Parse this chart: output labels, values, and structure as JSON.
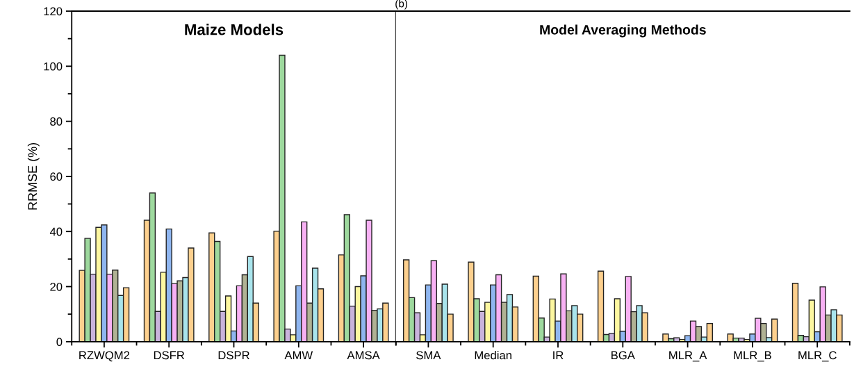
{
  "chart_data": [
    {
      "type": "bar",
      "title": "Maize Models",
      "ylabel": "RRMSE (%)",
      "annotations": [
        "(b)"
      ],
      "categories": [
        "RZWQM2",
        "DSFR",
        "DSPR",
        "AMW",
        "AMSA"
      ],
      "ylim": [
        0,
        120
      ],
      "yticks": [
        0,
        20,
        40,
        60,
        80,
        100,
        120
      ],
      "grid": false,
      "legend": false,
      "series": [
        {
          "color": "#fdd08e",
          "values": [
            25.9,
            44.1,
            39.5,
            40.1,
            31.5
          ]
        },
        {
          "color": "#9ed99e",
          "values": [
            37.5,
            54,
            36.4,
            104,
            46.1
          ]
        },
        {
          "color": "#c9b3dc",
          "values": [
            24.5,
            11,
            11,
            4.6,
            12.9
          ]
        },
        {
          "color": "#fdf7a0",
          "values": [
            41.5,
            25.2,
            16.6,
            2.5,
            20
          ]
        },
        {
          "color": "#8fb6f0",
          "values": [
            42.4,
            40.9,
            3.9,
            20.3,
            23.9
          ]
        },
        {
          "color": "#f8b1f4",
          "values": [
            24.5,
            21.1,
            20.3,
            43.5,
            44.1
          ]
        },
        {
          "color": "#b0b294",
          "values": [
            26,
            22.1,
            24.3,
            14,
            11.4
          ]
        },
        {
          "color": "#a9e4ec",
          "values": [
            16.8,
            23.3,
            30.9,
            26.7,
            11.9
          ]
        },
        {
          "color": "#fdd08e",
          "values": [
            19.6,
            34,
            14,
            19.2,
            14
          ]
        }
      ]
    },
    {
      "type": "bar",
      "title": "Model Averaging Methods",
      "categories": [
        "SMA",
        "Median",
        "IR",
        "BGA",
        "MLR_A",
        "MLR_B",
        "MLR_C"
      ],
      "ylim": [
        0,
        120
      ],
      "tick_labels": "x",
      "grid": false,
      "legend": false,
      "series": [
        {
          "color": "#fdd08e",
          "values": [
            29.7,
            28.9,
            23.8,
            25.6,
            2.8,
            2.8,
            21.2
          ]
        },
        {
          "color": "#9ed99e",
          "values": [
            16,
            15.6,
            8.6,
            2.6,
            1.1,
            1.3,
            2.3
          ]
        },
        {
          "color": "#c9b3dc",
          "values": [
            10.5,
            11,
            1.7,
            3,
            1.4,
            1.3,
            1.8
          ]
        },
        {
          "color": "#fdf7a0",
          "values": [
            2.5,
            14.3,
            15.5,
            15.6,
            0.8,
            0.8,
            15.1
          ]
        },
        {
          "color": "#8fb6f0",
          "values": [
            20.6,
            20.6,
            7.5,
            3.8,
            2.2,
            2.8,
            3.6
          ]
        },
        {
          "color": "#f8b1f4",
          "values": [
            29.4,
            24.3,
            24.6,
            23.7,
            7.5,
            8.5,
            19.9
          ]
        },
        {
          "color": "#b0b294",
          "values": [
            13.9,
            14.3,
            11.2,
            10.9,
            5.5,
            6.6,
            9.7
          ]
        },
        {
          "color": "#a9e4ec",
          "values": [
            20.9,
            17.1,
            13.1,
            13.1,
            1.7,
            1.5,
            11.6
          ]
        },
        {
          "color": "#fdd08e",
          "values": [
            10,
            12.6,
            10,
            10.5,
            6.6,
            8.2,
            9.7
          ]
        }
      ]
    }
  ]
}
